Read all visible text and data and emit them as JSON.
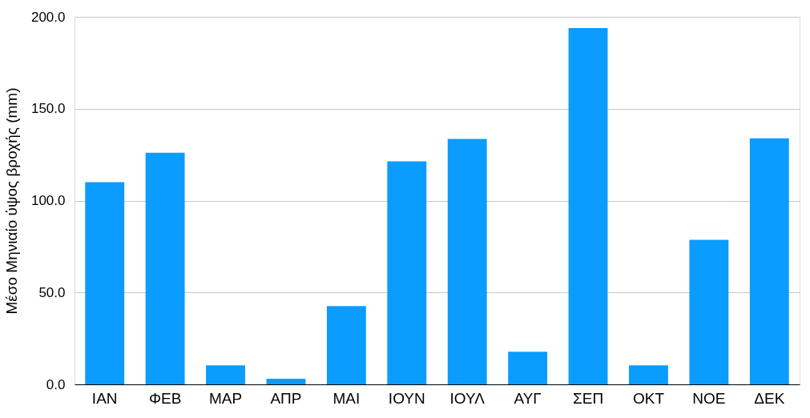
{
  "chart_data": {
    "type": "bar",
    "ylabel": "Μέσο Μηνιαίο ύψος βροχής (mm)",
    "categories": [
      "ΙΑΝ",
      "ΦΕΒ",
      "ΜΑΡ",
      "ΑΠΡ",
      "ΜΑΙ",
      "ΙΟΥΝ",
      "ΙΟΥΛ",
      "ΑΥΓ",
      "ΣΕΠ",
      "ΟΚΤ",
      "ΝΟΕ",
      "ΔΕΚ"
    ],
    "values": [
      110,
      126,
      10.4,
      3,
      42.6,
      121.3,
      133.5,
      17.8,
      193.9,
      10.4,
      78.7,
      133.9
    ],
    "color": "#0a9cff",
    "ylim": [
      0,
      200
    ],
    "yticks": [
      {
        "value": 0,
        "label": "0.0"
      },
      {
        "value": 50,
        "label": "50.0"
      },
      {
        "value": 100,
        "label": "100.0"
      },
      {
        "value": 150,
        "label": "150.0"
      },
      {
        "value": 200,
        "label": "200.0"
      }
    ],
    "grid": "y"
  }
}
